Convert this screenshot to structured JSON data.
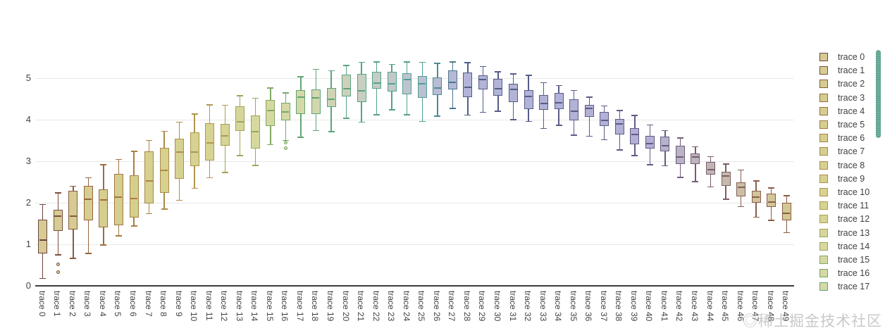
{
  "chart_data": {
    "type": "box",
    "title": "",
    "xlabel": "",
    "ylabel": "",
    "ylim": [
      0,
      5.6
    ],
    "yticks": [
      0,
      1,
      2,
      3,
      4,
      5
    ],
    "grid": true,
    "n_traces": 50,
    "legend": {
      "position": "right",
      "scrollable": true,
      "visible_items": 18
    },
    "traces": [
      {
        "name": "trace 0",
        "lower": 0.18,
        "q1": 0.78,
        "median": 1.1,
        "q3": 1.6,
        "upper": 1.96,
        "outliers": []
      },
      {
        "name": "trace 1",
        "lower": 0.75,
        "q1": 1.32,
        "median": 1.68,
        "q3": 1.83,
        "upper": 2.24,
        "outliers": [
          0.51,
          0.33
        ]
      },
      {
        "name": "trace 2",
        "lower": 0.66,
        "q1": 1.36,
        "median": 1.68,
        "q3": 2.28,
        "upper": 2.4,
        "outliers": []
      },
      {
        "name": "trace 3",
        "lower": 0.78,
        "q1": 1.58,
        "median": 2.08,
        "q3": 2.4,
        "upper": 2.6,
        "outliers": []
      },
      {
        "name": "trace 4",
        "lower": 0.98,
        "q1": 1.4,
        "median": 2.06,
        "q3": 2.32,
        "upper": 2.92,
        "outliers": []
      },
      {
        "name": "trace 5",
        "lower": 1.2,
        "q1": 1.46,
        "median": 2.14,
        "q3": 2.7,
        "upper": 3.04,
        "outliers": []
      },
      {
        "name": "trace 6",
        "lower": 1.44,
        "q1": 1.64,
        "median": 2.1,
        "q3": 2.66,
        "upper": 3.24,
        "outliers": []
      },
      {
        "name": "trace 7",
        "lower": 1.74,
        "q1": 1.99,
        "median": 2.52,
        "q3": 3.24,
        "upper": 3.5,
        "outliers": []
      },
      {
        "name": "trace 8",
        "lower": 1.85,
        "q1": 2.24,
        "median": 2.78,
        "q3": 3.32,
        "upper": 3.72,
        "outliers": []
      },
      {
        "name": "trace 9",
        "lower": 2.06,
        "q1": 2.58,
        "median": 3.22,
        "q3": 3.54,
        "upper": 3.94,
        "outliers": []
      },
      {
        "name": "trace 10",
        "lower": 2.35,
        "q1": 2.88,
        "median": 3.22,
        "q3": 3.7,
        "upper": 4.14,
        "outliers": []
      },
      {
        "name": "trace 11",
        "lower": 2.6,
        "q1": 3.02,
        "median": 3.44,
        "q3": 3.92,
        "upper": 4.36,
        "outliers": []
      },
      {
        "name": "trace 12",
        "lower": 2.73,
        "q1": 3.38,
        "median": 3.61,
        "q3": 3.9,
        "upper": 4.35,
        "outliers": []
      },
      {
        "name": "trace 13",
        "lower": 3.14,
        "q1": 3.73,
        "median": 3.95,
        "q3": 4.32,
        "upper": 4.58,
        "outliers": []
      },
      {
        "name": "trace 14",
        "lower": 2.9,
        "q1": 3.3,
        "median": 3.72,
        "q3": 4.1,
        "upper": 4.52,
        "outliers": []
      },
      {
        "name": "trace 15",
        "lower": 3.4,
        "q1": 3.85,
        "median": 4.22,
        "q3": 4.48,
        "upper": 4.76,
        "outliers": []
      },
      {
        "name": "trace 16",
        "lower": 3.5,
        "q1": 3.98,
        "median": 4.18,
        "q3": 4.4,
        "upper": 4.64,
        "outliers": [
          3.45,
          3.31
        ]
      },
      {
        "name": "trace 17",
        "lower": 3.58,
        "q1": 4.14,
        "median": 4.54,
        "q3": 4.72,
        "upper": 5.03,
        "outliers": []
      },
      {
        "name": "trace 18",
        "lower": 3.74,
        "q1": 4.13,
        "median": 4.52,
        "q3": 4.73,
        "upper": 5.21,
        "outliers": []
      },
      {
        "name": "trace 19",
        "lower": 3.71,
        "q1": 4.3,
        "median": 4.5,
        "q3": 4.77,
        "upper": 5.18,
        "outliers": []
      },
      {
        "name": "trace 20",
        "lower": 4.03,
        "q1": 4.56,
        "median": 4.75,
        "q3": 5.08,
        "upper": 5.31,
        "outliers": []
      },
      {
        "name": "trace 21",
        "lower": 3.94,
        "q1": 4.43,
        "median": 4.7,
        "q3": 5.11,
        "upper": 5.38,
        "outliers": []
      },
      {
        "name": "trace 22",
        "lower": 4.12,
        "q1": 4.75,
        "median": 4.88,
        "q3": 5.15,
        "upper": 5.39,
        "outliers": []
      },
      {
        "name": "trace 23",
        "lower": 4.24,
        "q1": 4.68,
        "median": 4.87,
        "q3": 5.15,
        "upper": 5.33,
        "outliers": []
      },
      {
        "name": "trace 24",
        "lower": 4.12,
        "q1": 4.61,
        "median": 4.96,
        "q3": 5.12,
        "upper": 5.39,
        "outliers": []
      },
      {
        "name": "trace 25",
        "lower": 3.96,
        "q1": 4.53,
        "median": 4.87,
        "q3": 5.05,
        "upper": 5.38,
        "outliers": []
      },
      {
        "name": "trace 26",
        "lower": 4.08,
        "q1": 4.6,
        "median": 4.77,
        "q3": 5.01,
        "upper": 5.36,
        "outliers": []
      },
      {
        "name": "trace 27",
        "lower": 4.27,
        "q1": 4.73,
        "median": 4.9,
        "q3": 5.19,
        "upper": 5.39,
        "outliers": []
      },
      {
        "name": "trace 28",
        "lower": 4.11,
        "q1": 4.54,
        "median": 4.78,
        "q3": 5.13,
        "upper": 5.37,
        "outliers": []
      },
      {
        "name": "trace 29",
        "lower": 4.18,
        "q1": 4.73,
        "median": 4.96,
        "q3": 5.07,
        "upper": 5.28,
        "outliers": []
      },
      {
        "name": "trace 30",
        "lower": 4.2,
        "q1": 4.58,
        "median": 4.74,
        "q3": 4.98,
        "upper": 5.15,
        "outliers": []
      },
      {
        "name": "trace 31",
        "lower": 4.0,
        "q1": 4.42,
        "median": 4.73,
        "q3": 4.86,
        "upper": 5.1,
        "outliers": []
      },
      {
        "name": "trace 32",
        "lower": 3.96,
        "q1": 4.26,
        "median": 4.56,
        "q3": 4.71,
        "upper": 5.07,
        "outliers": []
      },
      {
        "name": "trace 33",
        "lower": 3.79,
        "q1": 4.23,
        "median": 4.39,
        "q3": 4.59,
        "upper": 4.89,
        "outliers": []
      },
      {
        "name": "trace 34",
        "lower": 3.86,
        "q1": 4.26,
        "median": 4.4,
        "q3": 4.65,
        "upper": 4.82,
        "outliers": []
      },
      {
        "name": "trace 35",
        "lower": 3.63,
        "q1": 3.99,
        "median": 4.2,
        "q3": 4.5,
        "upper": 4.7,
        "outliers": []
      },
      {
        "name": "trace 36",
        "lower": 3.6,
        "q1": 4.07,
        "median": 4.27,
        "q3": 4.36,
        "upper": 4.54,
        "outliers": []
      },
      {
        "name": "trace 37",
        "lower": 3.52,
        "q1": 3.85,
        "median": 3.99,
        "q3": 4.19,
        "upper": 4.33,
        "outliers": []
      },
      {
        "name": "trace 38",
        "lower": 3.27,
        "q1": 3.64,
        "median": 3.9,
        "q3": 4.02,
        "upper": 4.22,
        "outliers": []
      },
      {
        "name": "trace 39",
        "lower": 3.14,
        "q1": 3.4,
        "median": 3.65,
        "q3": 3.79,
        "upper": 4.1,
        "outliers": []
      },
      {
        "name": "trace 40",
        "lower": 2.92,
        "q1": 3.3,
        "median": 3.43,
        "q3": 3.61,
        "upper": 3.87,
        "outliers": []
      },
      {
        "name": "trace 41",
        "lower": 2.89,
        "q1": 3.24,
        "median": 3.37,
        "q3": 3.59,
        "upper": 3.74,
        "outliers": []
      },
      {
        "name": "trace 42",
        "lower": 2.61,
        "q1": 2.93,
        "median": 3.11,
        "q3": 3.38,
        "upper": 3.56,
        "outliers": []
      },
      {
        "name": "trace 43",
        "lower": 2.51,
        "q1": 2.93,
        "median": 3.11,
        "q3": 3.19,
        "upper": 3.35,
        "outliers": []
      },
      {
        "name": "trace 44",
        "lower": 2.38,
        "q1": 2.67,
        "median": 2.79,
        "q3": 2.98,
        "upper": 3.11,
        "outliers": []
      },
      {
        "name": "trace 45",
        "lower": 2.08,
        "q1": 2.41,
        "median": 2.64,
        "q3": 2.75,
        "upper": 2.93,
        "outliers": []
      },
      {
        "name": "trace 46",
        "lower": 1.91,
        "q1": 2.15,
        "median": 2.38,
        "q3": 2.5,
        "upper": 2.79,
        "outliers": []
      },
      {
        "name": "trace 47",
        "lower": 1.65,
        "q1": 2.0,
        "median": 2.13,
        "q3": 2.29,
        "upper": 2.53,
        "outliers": []
      },
      {
        "name": "trace 48",
        "lower": 1.58,
        "q1": 1.9,
        "median": 2.02,
        "q3": 2.22,
        "upper": 2.36,
        "outliers": []
      },
      {
        "name": "trace 49",
        "lower": 1.28,
        "q1": 1.58,
        "median": 1.75,
        "q3": 2.0,
        "upper": 2.17,
        "outliers": []
      }
    ]
  },
  "colors": {
    "background": "#ffffff",
    "grid": "#e8e8e8",
    "axis_line": "#3d3d3d",
    "tick_label": "#444444",
    "legend_label": "#3f3f3f",
    "legend_scrollbar": "#57a18d",
    "watermark": "#c9c9c9",
    "trace_anchors": [
      {
        "i": 0,
        "line": "#6e4440",
        "fill": "#d7cb94"
      },
      {
        "i": 3,
        "line": "#95663f",
        "fill": "#d6cd90"
      },
      {
        "i": 6,
        "line": "#a97f46",
        "fill": "#d5cf8d"
      },
      {
        "i": 11,
        "line": "#b09a4f",
        "fill": "#d7d392"
      },
      {
        "i": 14,
        "line": "#93aa5c",
        "fill": "#d7d89e"
      },
      {
        "i": 17,
        "line": "#63a573",
        "fill": "#d4d9a8"
      },
      {
        "i": 21,
        "line": "#57a385",
        "fill": "#c9cfc0"
      },
      {
        "i": 25,
        "line": "#4f9f96",
        "fill": "#bac0d2"
      },
      {
        "i": 28,
        "line": "#4f5f88",
        "fill": "#b3b5d8"
      },
      {
        "i": 33,
        "line": "#585b88",
        "fill": "#b1b2d7"
      },
      {
        "i": 40,
        "line": "#655a83",
        "fill": "#b2b1d5"
      },
      {
        "i": 44,
        "line": "#7a5c6e",
        "fill": "#bfb6b4"
      },
      {
        "i": 47,
        "line": "#8a5f4d",
        "fill": "#cfc49b"
      },
      {
        "i": 49,
        "line": "#8a5a44",
        "fill": "#d3c794"
      }
    ]
  },
  "watermark": {
    "text": "◎稀土掘金技术社区"
  }
}
